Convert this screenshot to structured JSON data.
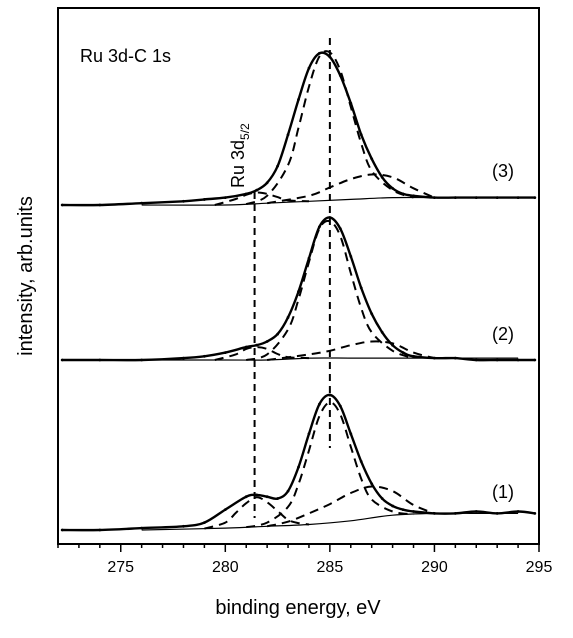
{
  "chart_data": {
    "type": "line",
    "title": "",
    "annotation": "Ru 3d-C 1s",
    "xlabel": "binding energy, eV",
    "ylabel": "intensity, arb.units",
    "xlim": [
      272,
      295
    ],
    "x_ticks": [
      275,
      280,
      285,
      290,
      295
    ],
    "x_tick_labels": [
      "275",
      "280",
      "285",
      "290",
      "295"
    ],
    "x_minor_step": 1,
    "y_ticks": "none",
    "grid": false,
    "legend": "none",
    "reference_lines": [
      {
        "label_main": "Ru 3d",
        "label_sub": "5/2",
        "x": 281.4
      },
      {
        "x": 285.0
      }
    ],
    "series": [
      {
        "name": "(1)",
        "baseline_level": 0.11,
        "measured": {
          "x": [
            272.2,
            274,
            276,
            278,
            279,
            280,
            281,
            281.5,
            282,
            282.5,
            283,
            283.5,
            284,
            284.5,
            285,
            285.5,
            286,
            286.5,
            287,
            287.5,
            288,
            288.5,
            289,
            290,
            291,
            292,
            293,
            294,
            294.8
          ],
          "y": [
            0.0,
            0.0,
            0.01,
            0.02,
            0.04,
            0.11,
            0.18,
            0.19,
            0.18,
            0.17,
            0.21,
            0.34,
            0.52,
            0.68,
            0.73,
            0.67,
            0.52,
            0.37,
            0.25,
            0.17,
            0.13,
            0.11,
            0.1,
            0.09,
            0.09,
            0.1,
            0.09,
            0.1,
            0.09
          ]
        },
        "background": {
          "x": [
            276,
            280,
            282,
            284,
            286,
            288,
            290,
            292,
            294
          ],
          "y": [
            0.0,
            0.01,
            0.02,
            0.03,
            0.05,
            0.08,
            0.09,
            0.09,
            0.09
          ]
        },
        "components": [
          {
            "x": [
              279,
              280,
              280.5,
              281,
              281.5,
              282,
              282.5,
              283,
              283.5,
              284
            ],
            "y": [
              0.0,
              0.03,
              0.08,
              0.13,
              0.16,
              0.13,
              0.08,
              0.03,
              0.01,
              0.0
            ]
          },
          {
            "x": [
              281,
              282,
              283,
              283.5,
              284,
              284.5,
              285,
              285.5,
              286,
              286.5,
              287,
              288,
              289
            ],
            "y": [
              0.0,
              0.02,
              0.1,
              0.22,
              0.4,
              0.58,
              0.65,
              0.58,
              0.4,
              0.22,
              0.1,
              0.02,
              0.0
            ]
          },
          {
            "x": [
              282,
              283,
              284,
              285,
              286,
              287,
              288,
              289,
              290
            ],
            "y": [
              0.0,
              0.02,
              0.06,
              0.1,
              0.15,
              0.17,
              0.13,
              0.05,
              0.0
            ]
          }
        ]
      },
      {
        "name": "(2)",
        "baseline_level": 0.08,
        "measured": {
          "x": [
            272.2,
            274,
            276,
            278,
            279,
            280,
            281,
            281.5,
            282,
            282.5,
            283,
            283.5,
            284,
            284.5,
            285,
            285.5,
            286,
            286.5,
            287,
            287.5,
            288,
            288.5,
            289,
            290,
            291,
            292,
            293,
            294,
            294.8
          ],
          "y": [
            0.0,
            0.0,
            0.0,
            0.01,
            0.02,
            0.04,
            0.07,
            0.08,
            0.1,
            0.14,
            0.23,
            0.37,
            0.55,
            0.72,
            0.77,
            0.71,
            0.56,
            0.39,
            0.25,
            0.15,
            0.08,
            0.04,
            0.02,
            0.01,
            0.01,
            0.0,
            0.0,
            0.0,
            0.0
          ]
        },
        "background": {
          "x": [
            276,
            280,
            282,
            284,
            286,
            288,
            290,
            292,
            294
          ],
          "y": [
            0.0,
            0.0,
            0.0,
            0.01,
            0.01,
            0.01,
            0.01,
            0.01,
            0.01
          ]
        },
        "components": [
          {
            "x": [
              279.5,
              280.5,
              281,
              281.5,
              282,
              282.5,
              283,
              284
            ],
            "y": [
              0.0,
              0.03,
              0.06,
              0.07,
              0.06,
              0.03,
              0.01,
              0.0
            ]
          },
          {
            "x": [
              281,
              282,
              283,
              283.5,
              284,
              284.5,
              285,
              285.5,
              286,
              286.5,
              287,
              288,
              289
            ],
            "y": [
              0.0,
              0.03,
              0.16,
              0.32,
              0.52,
              0.7,
              0.74,
              0.66,
              0.46,
              0.27,
              0.14,
              0.04,
              0.0
            ]
          },
          {
            "x": [
              282,
              284,
              285,
              286,
              287,
              288,
              289,
              290
            ],
            "y": [
              0.0,
              0.02,
              0.04,
              0.07,
              0.09,
              0.08,
              0.03,
              0.0
            ]
          }
        ]
      },
      {
        "name": "(3)",
        "baseline_level": 0.08,
        "measured": {
          "x": [
            272.2,
            274,
            276,
            278,
            279,
            280,
            281,
            281.5,
            282,
            282.5,
            283,
            283.5,
            284,
            284.5,
            285,
            285.5,
            286,
            286.5,
            287,
            287.5,
            288,
            288.5,
            289,
            290,
            291,
            292,
            293,
            294,
            294.8
          ],
          "y": [
            0.0,
            0.0,
            0.01,
            0.02,
            0.03,
            0.04,
            0.06,
            0.08,
            0.12,
            0.21,
            0.38,
            0.57,
            0.74,
            0.82,
            0.8,
            0.7,
            0.55,
            0.38,
            0.25,
            0.15,
            0.09,
            0.06,
            0.05,
            0.04,
            0.04,
            0.04,
            0.04,
            0.04,
            0.04
          ]
        },
        "background": {
          "x": [
            276,
            280,
            282,
            284,
            286,
            288,
            290,
            292,
            294
          ],
          "y": [
            0.0,
            0.0,
            0.01,
            0.02,
            0.03,
            0.04,
            0.04,
            0.04,
            0.04
          ]
        },
        "components": [
          {
            "x": [
              279.5,
              280.5,
              281,
              281.5,
              282,
              282.5,
              283,
              284
            ],
            "y": [
              0.0,
              0.03,
              0.05,
              0.06,
              0.05,
              0.03,
              0.01,
              0.0
            ]
          },
          {
            "x": [
              281,
              282,
              283,
              283.5,
              284,
              284.5,
              285,
              285.5,
              286,
              286.5,
              287,
              288,
              289
            ],
            "y": [
              0.0,
              0.04,
              0.2,
              0.4,
              0.62,
              0.78,
              0.8,
              0.7,
              0.5,
              0.3,
              0.15,
              0.04,
              0.0
            ]
          },
          {
            "x": [
              282,
              284,
              285,
              286,
              287,
              288,
              289,
              290
            ],
            "y": [
              0.0,
              0.03,
              0.07,
              0.11,
              0.13,
              0.11,
              0.05,
              0.0
            ]
          }
        ]
      }
    ]
  }
}
